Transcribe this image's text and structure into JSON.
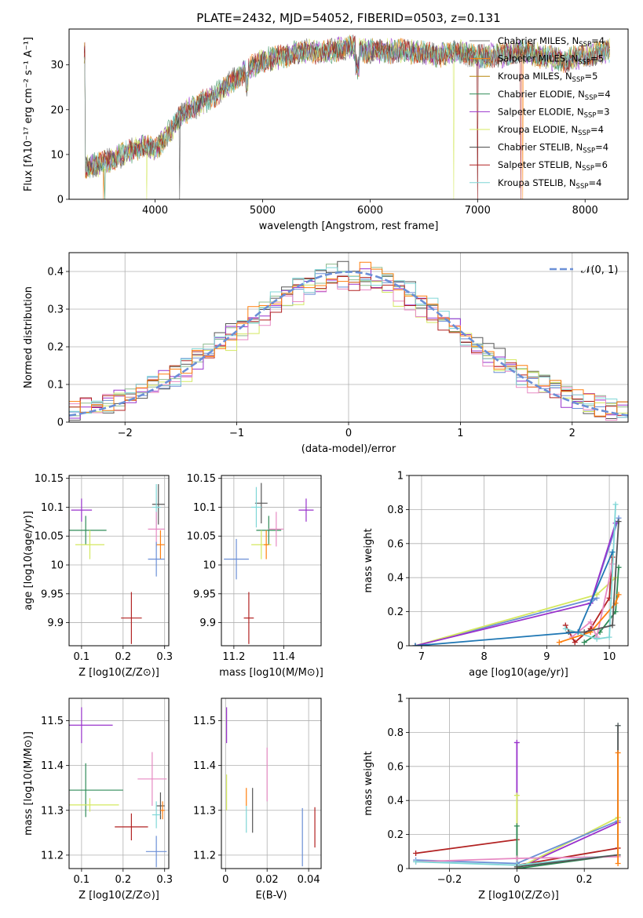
{
  "colors": [
    "#1f77b4",
    "#ff7f0e",
    "#2ca02c",
    "#9467bd",
    "#d4e85f",
    "#555555",
    "#b22222",
    "#7fd6d6",
    "#e78ac3",
    "#6b8fd6"
  ],
  "chart_data": [
    {
      "id": "spectrum",
      "type": "line",
      "title": "PLATE=2432, MJD=54052, FIBERID=0503, z=0.131",
      "xlabel": "wavelength [Angstrom, rest frame]",
      "ylabel": "Flux [fλ10⁻¹⁷ erg cm⁻² s⁻¹ A⁻¹]",
      "xlim": [
        3200,
        8400
      ],
      "ylim": [
        0,
        38
      ],
      "xticks": [
        4000,
        5000,
        6000,
        7000,
        8000
      ],
      "yticks": [
        0,
        10,
        20,
        30
      ],
      "grid": false,
      "legend_position": "top-right",
      "envelope": {
        "x": [
          3350,
          3500,
          3700,
          3900,
          4000,
          4100,
          4250,
          4400,
          4600,
          4800,
          5000,
          5200,
          5400,
          5600,
          5800,
          6000,
          6200,
          6400,
          6600,
          6800,
          7000,
          7200,
          7400,
          7600,
          7800,
          8000,
          8200
        ],
        "y": [
          7,
          8,
          10,
          12,
          11,
          14,
          19,
          21,
          24,
          28,
          31,
          32,
          33,
          33,
          34,
          33,
          33,
          33,
          32,
          33,
          32,
          32,
          33,
          32,
          31,
          32,
          33
        ]
      },
      "series": [
        {
          "name": "Chabrier MILES, N_SSP=4",
          "label": "Chabrier MILES, N",
          "sub": "SSP",
          "suffix": "=4",
          "color": "#777777"
        },
        {
          "name": "Salpeter MILES, N_SSP=5",
          "label": "Salpeter MILES, N",
          "sub": "SSP",
          "suffix": "=5",
          "color": "#ff7f0e"
        },
        {
          "name": "Kroupa MILES, N_SSP=5",
          "label": "Kroupa MILES, N",
          "sub": "SSP",
          "suffix": "=5",
          "color": "#b8860b"
        },
        {
          "name": "Chabrier ELODIE, N_SSP=4",
          "label": "Chabrier ELODIE, N",
          "sub": "SSP",
          "suffix": "=4",
          "color": "#2e8b57"
        },
        {
          "name": "Salpeter ELODIE, N_SSP=3",
          "label": "Salpeter ELODIE, N",
          "sub": "SSP",
          "suffix": "=3",
          "color": "#9932cc"
        },
        {
          "name": "Kroupa ELODIE, N_SSP=4",
          "label": "Kroupa ELODIE, N",
          "sub": "SSP",
          "suffix": "=4",
          "color": "#d4e85f"
        },
        {
          "name": "Chabrier STELIB, N_SSP=4",
          "label": "Chabrier STELIB, N",
          "sub": "SSP",
          "suffix": "=4",
          "color": "#444444"
        },
        {
          "name": "Salpeter STELIB, N_SSP=6",
          "label": "Salpeter STELIB, N",
          "sub": "SSP",
          "suffix": "=6",
          "color": "#b22222"
        },
        {
          "name": "Kroupa STELIB, N_SSP=4",
          "label": "Kroupa STELIB, N",
          "sub": "SSP",
          "suffix": "=4",
          "color": "#7fd6d6"
        }
      ]
    },
    {
      "id": "residuals",
      "type": "histogram",
      "xlabel": "(data-model)/error",
      "ylabel": "Normed distribution",
      "xlim": [
        -2.5,
        2.5
      ],
      "ylim": [
        0,
        0.45
      ],
      "xticks": [
        -2,
        -1,
        0,
        1,
        2
      ],
      "yticks": [
        0.0,
        0.1,
        0.2,
        0.3,
        0.4
      ],
      "grid": true,
      "legend_position": "top-right",
      "reference": {
        "name": "𝒩(0,1)",
        "label": "𝒩(0, 1)",
        "color": "#6b8fd6",
        "mean": 0,
        "sigma": 1
      },
      "bin_width": 0.1,
      "colors": [
        "#6b8fd6",
        "#8fbc8f",
        "#555555",
        "#9932cc",
        "#d4e85f",
        "#e78ac3",
        "#b22222",
        "#7fd6d6",
        "#ff7f0e"
      ]
    },
    {
      "id": "age_vs_Z",
      "type": "errorbar",
      "xlabel": "Z [log10(Z/Z⊙)]",
      "ylabel": "age [log10(age/yr)]",
      "xlim": [
        0.07,
        0.31
      ],
      "ylim": [
        9.86,
        10.155
      ],
      "xticks": [
        0.1,
        0.2,
        0.3
      ],
      "yticks": [
        9.9,
        9.95,
        10.0,
        10.05,
        10.1,
        10.15
      ],
      "grid": true,
      "points": [
        {
          "x": 0.1,
          "y": 10.095,
          "xerr": 0.025,
          "yerr": 0.02,
          "color": "#9932cc"
        },
        {
          "x": 0.11,
          "y": 10.06,
          "xerr": 0.05,
          "yerr": 0.025,
          "color": "#2e8b57"
        },
        {
          "x": 0.12,
          "y": 10.035,
          "xerr": 0.035,
          "yerr": 0.025,
          "color": "#d4e85f"
        },
        {
          "x": 0.22,
          "y": 9.908,
          "xerr": 0.025,
          "yerr": 0.045,
          "color": "#b22222"
        },
        {
          "x": 0.285,
          "y": 10.105,
          "xerr": 0.015,
          "yerr": 0.035,
          "color": "#555555"
        },
        {
          "x": 0.28,
          "y": 10.1,
          "xerr": 0.01,
          "yerr": 0.04,
          "color": "#7fd6d6"
        },
        {
          "x": 0.28,
          "y": 10.062,
          "xerr": 0.02,
          "yerr": 0.03,
          "color": "#e78ac3"
        },
        {
          "x": 0.29,
          "y": 10.035,
          "xerr": 0.01,
          "yerr": 0.025,
          "color": "#ff7f0e"
        },
        {
          "x": 0.28,
          "y": 10.01,
          "xerr": 0.02,
          "yerr": 0.03,
          "color": "#6b8fd6"
        }
      ]
    },
    {
      "id": "age_vs_mass",
      "type": "errorbar",
      "xlabel": "mass [log10(M/M⊙)]",
      "ylabel": "",
      "xlim": [
        11.15,
        11.55
      ],
      "ylim": [
        9.86,
        10.155
      ],
      "xticks": [
        11.2,
        11.4
      ],
      "yticks": [
        9.9,
        9.95,
        10.0,
        10.05,
        10.1,
        10.15
      ],
      "grid": true,
      "points": [
        {
          "x": 11.49,
          "y": 10.095,
          "xerr": 0.03,
          "yerr": 0.02,
          "color": "#9932cc"
        },
        {
          "x": 11.34,
          "y": 10.06,
          "xerr": 0.05,
          "yerr": 0.025,
          "color": "#2e8b57"
        },
        {
          "x": 11.31,
          "y": 10.035,
          "xerr": 0.04,
          "yerr": 0.025,
          "color": "#d4e85f"
        },
        {
          "x": 11.26,
          "y": 9.908,
          "xerr": 0.02,
          "yerr": 0.045,
          "color": "#b22222"
        },
        {
          "x": 11.31,
          "y": 10.107,
          "xerr": 0.025,
          "yerr": 0.035,
          "color": "#555555"
        },
        {
          "x": 11.29,
          "y": 10.1,
          "xerr": 0.02,
          "yerr": 0.035,
          "color": "#7fd6d6"
        },
        {
          "x": 11.37,
          "y": 10.062,
          "xerr": 0.03,
          "yerr": 0.03,
          "color": "#e78ac3"
        },
        {
          "x": 11.33,
          "y": 10.035,
          "xerr": 0.01,
          "yerr": 0.025,
          "color": "#ff7f0e"
        },
        {
          "x": 11.21,
          "y": 10.01,
          "xerr": 0.05,
          "yerr": 0.035,
          "color": "#6b8fd6"
        }
      ]
    },
    {
      "id": "weight_vs_age",
      "type": "line",
      "xlabel": "age [log10(age/yr)]",
      "ylabel": "mass weight",
      "xlim": [
        6.8,
        10.3
      ],
      "ylim": [
        0,
        1.0
      ],
      "xticks": [
        7,
        8,
        9,
        10
      ],
      "yticks": [
        0.0,
        0.2,
        0.4,
        0.6,
        0.8,
        1.0
      ],
      "grid": true,
      "series": [
        {
          "color": "#6b8fd6",
          "x": [
            6.9,
            9.8,
            9.7,
            10.15
          ],
          "y": [
            0.0,
            0.28,
            0.25,
            0.75
          ]
        },
        {
          "color": "#d4e85f",
          "x": [
            6.9,
            9.8,
            10.1
          ],
          "y": [
            0.0,
            0.3,
            0.4
          ]
        },
        {
          "color": "#9932cc",
          "x": [
            6.9,
            9.7,
            10.1
          ],
          "y": [
            0.0,
            0.25,
            0.72
          ]
        },
        {
          "color": "#2e8b57",
          "x": [
            9.6,
            9.85,
            10.1,
            10.15
          ],
          "y": [
            0.02,
            0.08,
            0.2,
            0.46
          ]
        },
        {
          "color": "#b22222",
          "x": [
            9.3,
            9.45,
            9.7,
            10.0,
            10.05
          ],
          "y": [
            0.12,
            0.02,
            0.1,
            0.28,
            0.52
          ]
        },
        {
          "color": "#e78ac3",
          "x": [
            9.4,
            9.7,
            9.8,
            10.05
          ],
          "y": [
            0.05,
            0.14,
            0.05,
            0.48
          ]
        },
        {
          "color": "#ff7f0e",
          "x": [
            9.2,
            9.7,
            10.1,
            10.15
          ],
          "y": [
            0.02,
            0.08,
            0.25,
            0.3
          ]
        },
        {
          "color": "#7fd6d6",
          "x": [
            9.3,
            9.8,
            10.0,
            10.1
          ],
          "y": [
            0.1,
            0.04,
            0.05,
            0.83
          ]
        },
        {
          "color": "#555555",
          "x": [
            9.35,
            9.6,
            10.05,
            10.15
          ],
          "y": [
            0.08,
            0.08,
            0.12,
            0.73
          ]
        },
        {
          "color": "#1f77b4",
          "x": [
            6.9,
            9.5,
            10.05
          ],
          "y": [
            0.0,
            0.08,
            0.55
          ]
        }
      ]
    },
    {
      "id": "mass_vs_Z",
      "type": "errorbar",
      "xlabel": "Z [log10(Z/Z⊙)]",
      "ylabel": "mass [log10(M/M⊙)]",
      "xlim": [
        0.07,
        0.31
      ],
      "ylim": [
        11.17,
        11.55
      ],
      "xticks": [
        0.1,
        0.2,
        0.3
      ],
      "yticks": [
        11.2,
        11.3,
        11.4,
        11.5
      ],
      "grid": true,
      "points": [
        {
          "x": 0.1,
          "y": 11.49,
          "xerr": 0.075,
          "yerr": 0.04,
          "color": "#9932cc"
        },
        {
          "x": 0.11,
          "y": 11.345,
          "xerr": 0.09,
          "yerr": 0.06,
          "color": "#2e8b57"
        },
        {
          "x": 0.12,
          "y": 11.312,
          "xerr": 0.07,
          "yerr": 0.015,
          "color": "#d4e85f"
        },
        {
          "x": 0.22,
          "y": 11.263,
          "xerr": 0.04,
          "yerr": 0.03,
          "color": "#b22222"
        },
        {
          "x": 0.29,
          "y": 11.31,
          "xerr": 0.01,
          "yerr": 0.03,
          "color": "#555555"
        },
        {
          "x": 0.28,
          "y": 11.29,
          "xerr": 0.01,
          "yerr": 0.03,
          "color": "#7fd6d6"
        },
        {
          "x": 0.27,
          "y": 11.37,
          "xerr": 0.035,
          "yerr": 0.06,
          "color": "#e78ac3"
        },
        {
          "x": 0.295,
          "y": 11.3,
          "xerr": 0.005,
          "yerr": 0.02,
          "color": "#ff7f0e"
        },
        {
          "x": 0.28,
          "y": 11.208,
          "xerr": 0.025,
          "yerr": 0.035,
          "color": "#6b8fd6"
        }
      ]
    },
    {
      "id": "mass_vs_ebv",
      "type": "errorbar",
      "xlabel": "E(B-V)",
      "ylabel": "",
      "xlim": [
        -0.002,
        0.046
      ],
      "ylim": [
        11.17,
        11.55
      ],
      "xticks": [
        0.0,
        0.02,
        0.04
      ],
      "yticks": [
        11.2,
        11.3,
        11.4,
        11.5
      ],
      "grid": true,
      "points": [
        {
          "x": 0.0005,
          "y": 11.49,
          "xerr": 0,
          "yerr": 0.04,
          "color": "#9932cc"
        },
        {
          "x": 0.0005,
          "y": 11.34,
          "xerr": 0,
          "yerr": 0.04,
          "color": "#d4e85f"
        },
        {
          "x": 0.01,
          "y": 11.33,
          "xerr": 0,
          "yerr": 0.02,
          "color": "#ff7f0e"
        },
        {
          "x": 0.01,
          "y": 11.28,
          "xerr": 0,
          "yerr": 0.03,
          "color": "#7fd6d6"
        },
        {
          "x": 0.013,
          "y": 11.3,
          "xerr": 0,
          "yerr": 0.05,
          "color": "#555555"
        },
        {
          "x": 0.02,
          "y": 11.38,
          "xerr": 0,
          "yerr": 0.06,
          "color": "#e78ac3"
        },
        {
          "x": 0.037,
          "y": 11.24,
          "xerr": 0,
          "yerr": 0.065,
          "color": "#6b8fd6"
        },
        {
          "x": 0.043,
          "y": 11.262,
          "xerr": 0,
          "yerr": 0.045,
          "color": "#b22222"
        }
      ]
    },
    {
      "id": "weight_vs_Z",
      "type": "line",
      "xlabel": "Z [log10(Z/Z⊙)]",
      "ylabel": "mass weight",
      "xlim": [
        -0.32,
        0.33
      ],
      "ylim": [
        0,
        1.0
      ],
      "xticks": [
        -0.2,
        0.0,
        0.2
      ],
      "yticks": [
        0.0,
        0.2,
        0.4,
        0.6,
        0.8,
        1.0
      ],
      "grid": true,
      "series": [
        {
          "color": "#b22222",
          "x": [
            -0.3,
            0.0,
            0.0,
            0.3
          ],
          "y": [
            0.09,
            0.17,
            0.02,
            0.12
          ]
        },
        {
          "color": "#9932cc",
          "x": [
            0.0,
            0.0,
            0.3
          ],
          "y": [
            0.74,
            0.0,
            0.27
          ]
        },
        {
          "color": "#d4e85f",
          "x": [
            0.0,
            0.0,
            0.3
          ],
          "y": [
            0.43,
            0.0,
            0.3
          ]
        },
        {
          "color": "#2e8b57",
          "x": [
            0.0,
            0.0,
            0.3
          ],
          "y": [
            0.25,
            0.0,
            0.08
          ]
        },
        {
          "color": "#6b8fd6",
          "x": [
            -0.3,
            0.0,
            0.3
          ],
          "y": [
            0.05,
            0.03,
            0.28
          ]
        },
        {
          "color": "#e78ac3",
          "x": [
            -0.3,
            0.0,
            0.3
          ],
          "y": [
            0.04,
            0.06,
            0.07
          ]
        },
        {
          "color": "#7fd6d6",
          "x": [
            -0.3,
            0.0,
            0.3,
            0.3
          ],
          "y": [
            0.04,
            0.02,
            0.08,
            0.84
          ]
        },
        {
          "color": "#555555",
          "x": [
            0.0,
            0.3,
            0.3
          ],
          "y": [
            0.01,
            0.08,
            0.84
          ]
        },
        {
          "color": "#ff7f0e",
          "x": [
            0.3,
            0.3
          ],
          "y": [
            0.03,
            0.68
          ]
        }
      ]
    }
  ]
}
